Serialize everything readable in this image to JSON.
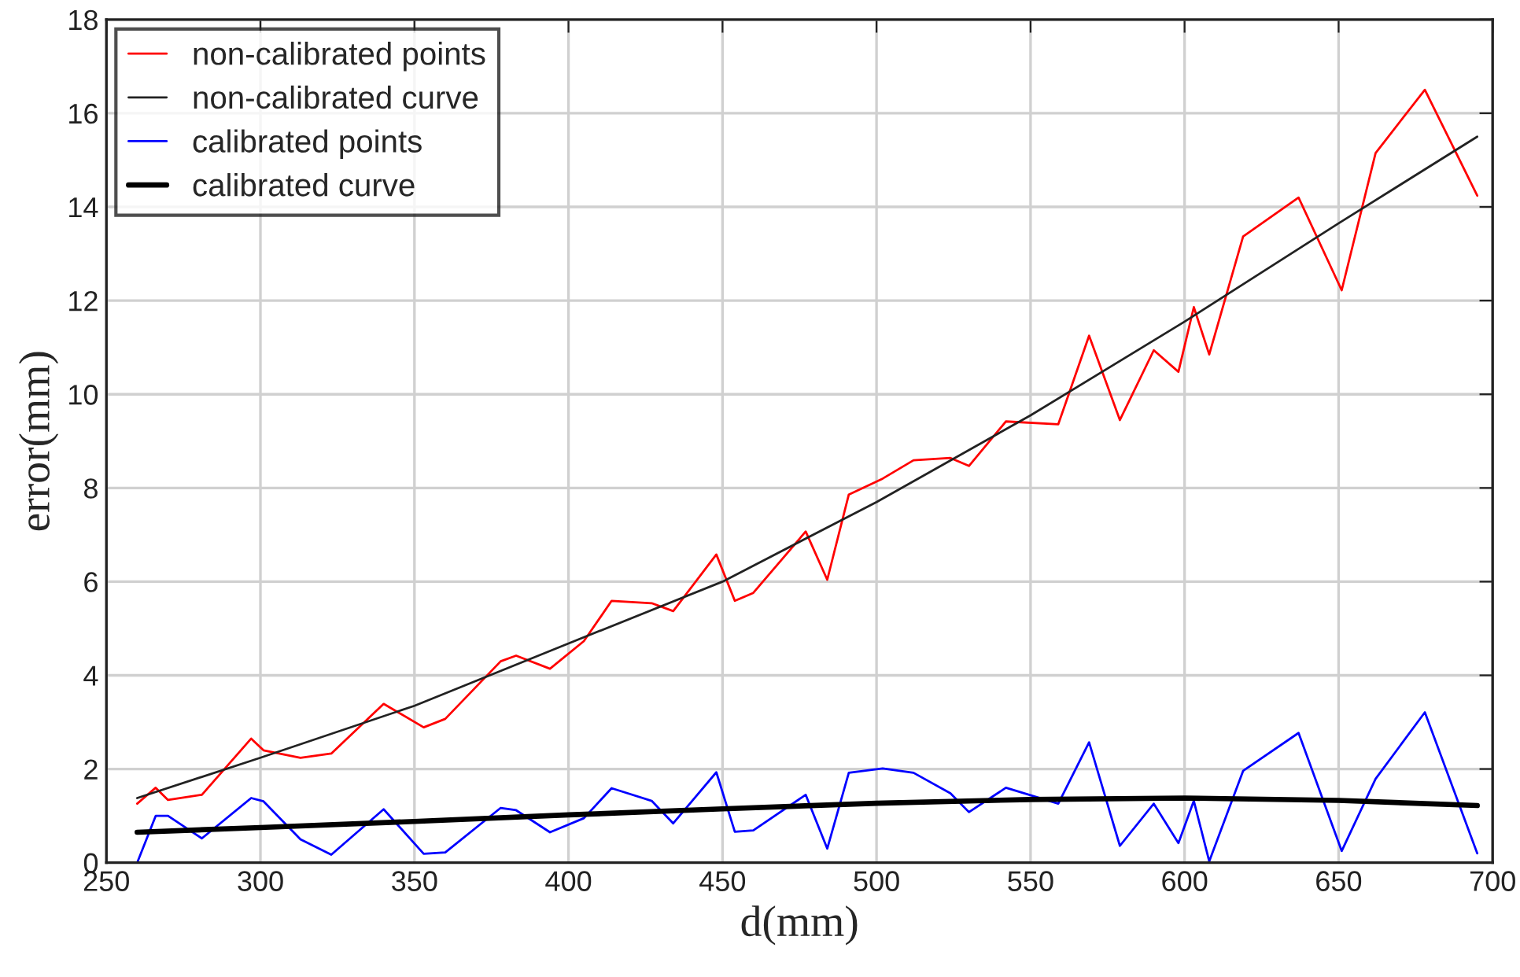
{
  "chart_data": {
    "type": "line",
    "xlabel": "d(mm)",
    "ylabel": "error(mm)",
    "xlim": [
      250,
      700
    ],
    "ylim": [
      0,
      18
    ],
    "xticks": [
      250,
      300,
      350,
      400,
      450,
      500,
      550,
      600,
      650,
      700
    ],
    "yticks": [
      0,
      2,
      4,
      6,
      8,
      10,
      12,
      14,
      16,
      18
    ],
    "grid": true,
    "legend": "top left",
    "marker": "none",
    "line_style": "solid",
    "series": [
      {
        "name": "non-calibrated points",
        "color": "#ff0000",
        "x": [
          260,
          266,
          270,
          281,
          297,
          301,
          313,
          323,
          340,
          353,
          360,
          378,
          383,
          394,
          405,
          414,
          427,
          434,
          448,
          454,
          460,
          477,
          484,
          491,
          502,
          512,
          524,
          530,
          542,
          559,
          569,
          579,
          590,
          598,
          603,
          608,
          619,
          637,
          651,
          662,
          678,
          695
        ],
        "values": [
          1.26,
          1.6,
          1.34,
          1.45,
          2.65,
          2.4,
          2.24,
          2.33,
          3.39,
          2.89,
          3.07,
          4.3,
          4.42,
          4.14,
          4.73,
          5.59,
          5.54,
          5.37,
          6.58,
          5.59,
          5.76,
          7.07,
          6.04,
          7.86,
          8.2,
          8.59,
          8.64,
          8.47,
          9.42,
          9.36,
          11.25,
          9.45,
          10.94,
          10.48,
          11.86,
          10.85,
          13.37,
          14.2,
          12.22,
          15.15,
          16.5,
          14.24
        ]
      },
      {
        "name": "non-calibrated curve",
        "color": "#222222",
        "x": [
          260,
          300,
          350,
          400,
          450,
          500,
          550,
          600,
          650,
          695
        ],
        "values": [
          1.38,
          2.24,
          3.35,
          4.68,
          6.0,
          7.7,
          9.55,
          11.55,
          13.65,
          15.5
        ]
      },
      {
        "name": "calibrated points",
        "color": "#0000ff",
        "x": [
          260,
          266,
          270,
          281,
          297,
          301,
          313,
          323,
          340,
          353,
          360,
          378,
          383,
          394,
          405,
          414,
          427,
          434,
          448,
          454,
          460,
          477,
          484,
          491,
          502,
          512,
          524,
          530,
          542,
          559,
          569,
          579,
          590,
          598,
          603,
          608,
          619,
          637,
          651,
          662,
          678,
          695
        ],
        "values": [
          0,
          1.0,
          1.0,
          0.52,
          1.38,
          1.31,
          0.5,
          0.17,
          1.14,
          0.19,
          0.22,
          1.17,
          1.12,
          0.65,
          0.95,
          1.59,
          1.32,
          0.84,
          1.93,
          0.66,
          0.69,
          1.45,
          0.3,
          1.92,
          2.01,
          1.92,
          1.48,
          1.08,
          1.6,
          1.26,
          2.57,
          0.36,
          1.26,
          0.42,
          1.32,
          0.03,
          1.96,
          2.77,
          0.25,
          1.79,
          3.21,
          0.2
        ]
      },
      {
        "name": "calibrated curve",
        "color": "#000000",
        "x": [
          260,
          300,
          350,
          400,
          450,
          500,
          550,
          600,
          650,
          695
        ],
        "values": [
          0.65,
          0.75,
          0.88,
          1.02,
          1.15,
          1.27,
          1.35,
          1.38,
          1.33,
          1.22
        ]
      }
    ]
  }
}
